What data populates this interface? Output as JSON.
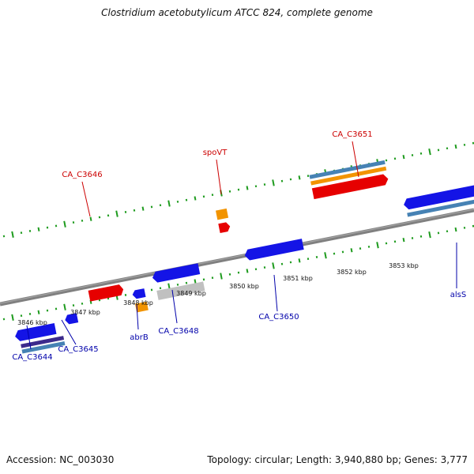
{
  "title": "Clostridium acetobutylicum ATCC 824, complete genome",
  "footer": {
    "accession": "Accession: NC_003030",
    "summary": "Topology: circular; Length: 3,940,880 bp; Genes: 3,777"
  },
  "colors": {
    "backbone": "#808080",
    "tick": "#1e9b1e",
    "gene_red": "#e60000",
    "gene_blue": "#1414e6",
    "gene_orange": "#f29400",
    "gene_gray": "#c0c0c0",
    "gene_steel": "#4682b4",
    "gene_purple": "#3c2a8c",
    "label_red": "#cc0000",
    "label_blue": "#0000aa"
  },
  "scale_labels": [
    "3846 kbp",
    "3847 kbp",
    "3848 kbp",
    "3849 kbp",
    "3850 kbp",
    "3851 kbp",
    "3852 kbp",
    "3853 kbp"
  ],
  "gene_labels": [
    {
      "name": "CA_C3644",
      "strand": "minus"
    },
    {
      "name": "CA_C3645",
      "strand": "minus"
    },
    {
      "name": "abrB",
      "strand": "minus"
    },
    {
      "name": "CA_C3648",
      "strand": "minus"
    },
    {
      "name": "CA_C3650",
      "strand": "minus"
    },
    {
      "name": "alsS",
      "strand": "minus"
    },
    {
      "name": "CA_C3646",
      "strand": "plus"
    },
    {
      "name": "spoVT",
      "strand": "plus"
    },
    {
      "name": "CA_C3651",
      "strand": "plus"
    }
  ]
}
